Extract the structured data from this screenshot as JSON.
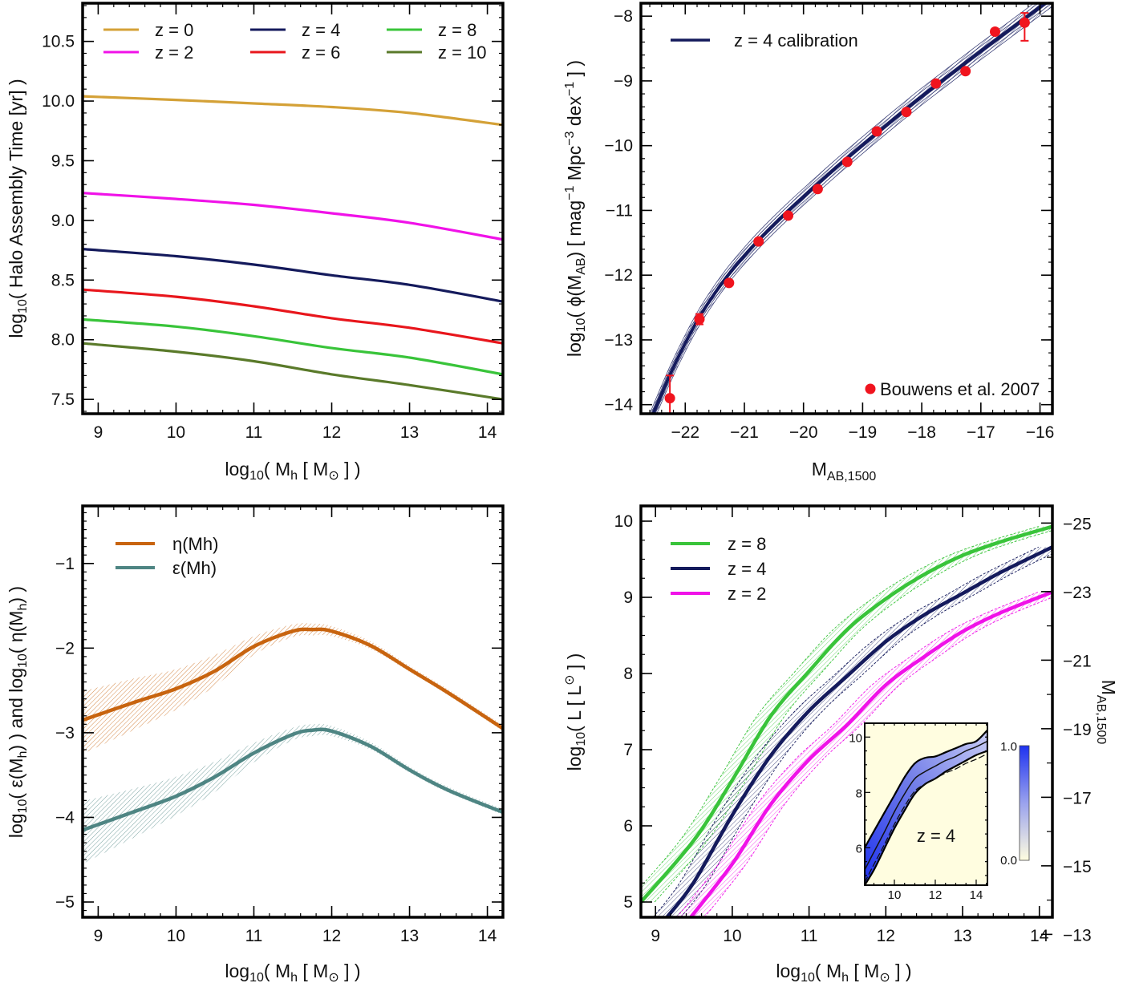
{
  "chart_data": [
    {
      "id": "assembly",
      "type": "line",
      "title": "",
      "xlabel": "log10( Mh [ M⊙ ] )",
      "ylabel": "log10( Halo Assembly Time [yr] )",
      "xlim": [
        8.8,
        14.2
      ],
      "ylim": [
        7.38,
        10.82
      ],
      "xticks": [
        9,
        10,
        11,
        12,
        13,
        14
      ],
      "xtick_labels": [
        "9",
        "10",
        "11",
        "12",
        "13",
        "14"
      ],
      "yticks": [
        7.5,
        8.0,
        8.5,
        9.0,
        9.5,
        10.0,
        10.5
      ],
      "ytick_labels": [
        "7.5",
        "8.0",
        "8.5",
        "9.0",
        "9.5",
        "10.0",
        "10.5"
      ],
      "legend_position": "top",
      "x": [
        8.8,
        10,
        11,
        12,
        13,
        14.2
      ],
      "series": [
        {
          "name": "z = 0",
          "color": "#D4A137",
          "values": [
            10.04,
            10.01,
            9.98,
            9.95,
            9.9,
            9.8
          ]
        },
        {
          "name": "z = 2",
          "color": "#F012E8",
          "values": [
            9.23,
            9.18,
            9.13,
            9.06,
            8.98,
            8.84
          ]
        },
        {
          "name": "z = 4",
          "color": "#141A5C",
          "values": [
            8.76,
            8.7,
            8.63,
            8.54,
            8.46,
            8.32
          ]
        },
        {
          "name": "z = 6",
          "color": "#E8161C",
          "values": [
            8.42,
            8.36,
            8.28,
            8.18,
            8.1,
            7.97
          ]
        },
        {
          "name": "z = 8",
          "color": "#39C43A",
          "values": [
            8.17,
            8.11,
            8.03,
            7.93,
            7.85,
            7.71
          ]
        },
        {
          "name": "z = 10",
          "color": "#5A7A2A",
          "values": [
            7.97,
            7.9,
            7.82,
            7.71,
            7.62,
            7.5
          ]
        }
      ]
    },
    {
      "id": "uvlf",
      "type": "line",
      "title": "",
      "xlabel": "MAB,1500",
      "ylabel": "log10( φ(MAB) [ mag−1 Mpc−3 dex−1 ] )",
      "xlim": [
        -22.75,
        -15.79
      ],
      "ylim": [
        -14.14,
        -7.8
      ],
      "xticks": [
        -22,
        -21,
        -20,
        -19,
        -18,
        -17,
        -16
      ],
      "xtick_labels": [
        "−22",
        "−21",
        "−20",
        "−19",
        "−18",
        "−17",
        "−16"
      ],
      "yticks": [
        -14,
        -13,
        -12,
        -11,
        -10,
        -9,
        -8
      ],
      "ytick_labels": [
        "−14",
        "−13",
        "−12",
        "−11",
        "−10",
        "−9",
        "−8"
      ],
      "legend_position": "top-left",
      "model": {
        "name": "z = 4 calibration",
        "color": "#141A5C",
        "x": [
          -22.75,
          -22.5,
          -22.25,
          -22.0,
          -21.75,
          -21.5,
          -21.25,
          -21.0,
          -20.75,
          -20.5,
          -20.25,
          -20.0,
          -19.5,
          -19.0,
          -18.5,
          -18.0,
          -17.5,
          -17.0,
          -16.5,
          -16.0,
          -15.79
        ],
        "y": [
          -14.6,
          -14.05,
          -13.52,
          -13.05,
          -12.63,
          -12.28,
          -11.97,
          -11.7,
          -11.45,
          -11.22,
          -11.0,
          -10.79,
          -10.38,
          -9.99,
          -9.61,
          -9.24,
          -8.89,
          -8.54,
          -8.2,
          -7.86,
          -7.72
        ],
        "band_halfwidth": 0.13
      },
      "observations": {
        "name": "Bouwens et al. 2007",
        "color": "#F0141E",
        "x": [
          -22.26,
          -21.76,
          -21.26,
          -20.76,
          -20.26,
          -19.76,
          -19.26,
          -18.76,
          -18.26,
          -17.76,
          -17.26,
          -16.76,
          -16.26
        ],
        "y": [
          -13.9,
          -12.68,
          -12.12,
          -11.48,
          -11.08,
          -10.67,
          -10.25,
          -9.78,
          -9.48,
          -9.04,
          -8.85,
          -8.24,
          -8.1
        ],
        "err_low": [
          0.55,
          0.08,
          0,
          0,
          0,
          0,
          0,
          0,
          0,
          0,
          0,
          0,
          0.28
        ],
        "err_high": [
          0.35,
          0.08,
          0,
          0,
          0,
          0,
          0,
          0,
          0,
          0,
          0,
          0,
          0.15
        ]
      }
    },
    {
      "id": "efficiency",
      "type": "line",
      "title": "",
      "xlabel": "log10( Mh [ M⊙ ] )",
      "ylabel": "log10( ε(Mh) )  and  log10( η(Mh) )",
      "xlim": [
        8.8,
        14.2
      ],
      "ylim": [
        -5.18,
        -0.32
      ],
      "xticks": [
        9,
        10,
        11,
        12,
        13,
        14
      ],
      "xtick_labels": [
        "9",
        "10",
        "11",
        "12",
        "13",
        "14"
      ],
      "yticks": [
        -5,
        -4,
        -3,
        -2,
        -1
      ],
      "ytick_labels": [
        "−5",
        "−4",
        "−3",
        "−2",
        "−1"
      ],
      "legend_position": "top-left",
      "x": [
        8.8,
        9.5,
        10.0,
        10.5,
        11.0,
        11.5,
        11.75,
        12.0,
        12.5,
        13.0,
        13.5,
        14.2
      ],
      "series": [
        {
          "name": "η(Mh)",
          "color": "#C8640F",
          "values": [
            -2.85,
            -2.63,
            -2.48,
            -2.27,
            -1.98,
            -1.8,
            -1.78,
            -1.8,
            -1.97,
            -2.25,
            -2.53,
            -2.95
          ],
          "band_low": [
            -3.25,
            -2.95,
            -2.73,
            -2.45,
            -2.08,
            -1.87,
            -1.85,
            -1.86,
            -2.01,
            -2.28,
            -2.56,
            -2.98
          ],
          "band_high": [
            -2.51,
            -2.35,
            -2.25,
            -2.08,
            -1.86,
            -1.72,
            -1.71,
            -1.74,
            -1.92,
            -2.21,
            -2.49,
            -2.91
          ]
        },
        {
          "name": "ε(Mh)",
          "color": "#4E8583",
          "values": [
            -4.15,
            -3.92,
            -3.75,
            -3.52,
            -3.24,
            -3.02,
            -2.97,
            -2.98,
            -3.16,
            -3.44,
            -3.68,
            -3.94
          ],
          "band_low": [
            -4.55,
            -4.22,
            -3.98,
            -3.7,
            -3.35,
            -3.09,
            -3.04,
            -3.04,
            -3.2,
            -3.47,
            -3.71,
            -3.97
          ],
          "band_high": [
            -3.81,
            -3.65,
            -3.52,
            -3.34,
            -3.12,
            -2.94,
            -2.9,
            -2.92,
            -3.11,
            -3.4,
            -3.64,
            -3.9
          ]
        }
      ]
    },
    {
      "id": "luminosity",
      "type": "line",
      "title": "",
      "xlabel": "log10( Mh [ M⊙ ] )",
      "ylabel": "log10( L [ L⊙ ] )",
      "ylabel_right": "MAB,1500",
      "xlim": [
        8.81,
        14.17
      ],
      "ylim": [
        4.8,
        10.2
      ],
      "xticks": [
        9,
        10,
        11,
        12,
        13,
        14
      ],
      "xtick_labels": [
        "9",
        "10",
        "11",
        "12",
        "13",
        "14"
      ],
      "yticks": [
        5,
        6,
        7,
        8,
        9,
        10
      ],
      "ytick_labels": [
        "5",
        "6",
        "7",
        "8",
        "9",
        "10"
      ],
      "right_ticks": [
        -25,
        -23,
        -21,
        -19,
        -17,
        -15,
        -13
      ],
      "right_tick_labels": [
        "−25",
        "−23",
        "−21",
        "−19",
        "−17",
        "−15",
        "−13"
      ],
      "right_ylim": [
        -13.5,
        -25.5
      ],
      "legend_position": "top-left",
      "series": [
        {
          "name": "z = 8",
          "color": "#39C43A",
          "x": [
            8.81,
            9.5,
            10.0,
            10.5,
            11.0,
            11.5,
            12.0,
            12.5,
            13.0,
            13.5,
            14.17
          ],
          "values": [
            5.0,
            5.81,
            6.6,
            7.44,
            8.03,
            8.58,
            8.98,
            9.3,
            9.55,
            9.73,
            9.93
          ],
          "band": 0.22
        },
        {
          "name": "z = 4",
          "color": "#141A5C",
          "x": [
            9.15,
            9.5,
            10.0,
            10.5,
            11.0,
            11.5,
            12.0,
            12.5,
            13.0,
            13.5,
            14.17
          ],
          "values": [
            4.8,
            5.26,
            6.14,
            6.92,
            7.51,
            7.97,
            8.42,
            8.77,
            9.05,
            9.33,
            9.66
          ],
          "band": 0.14
        },
        {
          "name": "z = 2",
          "color": "#F012E8",
          "x": [
            9.46,
            10.0,
            10.5,
            11.0,
            11.5,
            12.0,
            12.5,
            13.0,
            13.5,
            14.17
          ],
          "values": [
            4.8,
            5.5,
            6.28,
            6.87,
            7.33,
            7.85,
            8.22,
            8.55,
            8.8,
            9.07
          ],
          "band": 0.14
        }
      ],
      "inset": {
        "label": "z = 4",
        "xlim": [
          8.55,
          14.55
        ],
        "ylim": [
          4.65,
          10.5
        ],
        "xticks": [
          10,
          12,
          14
        ],
        "xtick_labels": [
          "10",
          "12",
          "14"
        ],
        "yticks": [
          6,
          8,
          10
        ],
        "ytick_labels": [
          "6",
          "8",
          "10"
        ],
        "background": "#FFFDE0",
        "fill_color": "#1E32F0",
        "colorbar_min_label": "0.0",
        "colorbar_max_label": "1.0",
        "x": [
          8.55,
          9.0,
          9.5,
          10.0,
          10.5,
          11.0,
          11.5,
          12.0,
          12.5,
          13.0,
          13.5,
          14.0,
          14.55
        ],
        "upper": [
          6.0,
          6.6,
          7.25,
          7.9,
          8.55,
          9.05,
          9.25,
          9.3,
          9.45,
          9.6,
          9.75,
          9.85,
          10.25
        ],
        "median": [
          5.2,
          5.85,
          6.55,
          7.3,
          7.95,
          8.5,
          8.75,
          8.95,
          9.15,
          9.3,
          9.5,
          9.65,
          9.85
        ],
        "lower": [
          4.65,
          5.2,
          5.95,
          6.7,
          7.35,
          7.95,
          8.3,
          8.5,
          8.75,
          8.95,
          9.15,
          9.35,
          9.5
        ]
      }
    }
  ]
}
